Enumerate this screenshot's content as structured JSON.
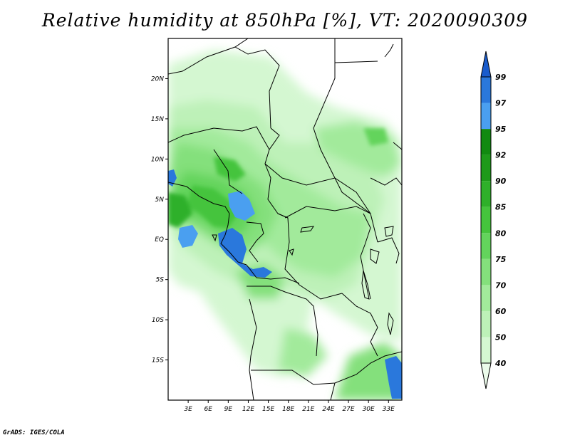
{
  "title": "Relative humidity at 850hPa [%], VT: 2020090309",
  "credit": "GrADS: IGES/COLA",
  "map": {
    "lon_range": [
      0,
      35
    ],
    "lat_range": [
      -20,
      25
    ],
    "lat_ticks": [
      {
        "value": 20,
        "label": "20N"
      },
      {
        "value": 15,
        "label": "15N"
      },
      {
        "value": 10,
        "label": "10N"
      },
      {
        "value": 5,
        "label": "5N"
      },
      {
        "value": 0,
        "label": "EQ"
      },
      {
        "value": -5,
        "label": "5S"
      },
      {
        "value": -10,
        "label": "10S"
      },
      {
        "value": -15,
        "label": "15S"
      }
    ],
    "lon_ticks": [
      {
        "value": 3,
        "label": "3E"
      },
      {
        "value": 6,
        "label": "6E"
      },
      {
        "value": 9,
        "label": "9E"
      },
      {
        "value": 12,
        "label": "12E"
      },
      {
        "value": 15,
        "label": "15E"
      },
      {
        "value": 18,
        "label": "18E"
      },
      {
        "value": 21,
        "label": "21E"
      },
      {
        "value": 24,
        "label": "24E"
      },
      {
        "value": 27,
        "label": "27E"
      },
      {
        "value": 30,
        "label": "30E"
      },
      {
        "value": 33,
        "label": "33E"
      }
    ]
  },
  "colorbar": {
    "levels": [
      "40",
      "50",
      "60",
      "70",
      "75",
      "80",
      "85",
      "90",
      "92",
      "95",
      "97",
      "99"
    ],
    "colors": [
      "#ebfbea",
      "#d4f7d1",
      "#bdf1b8",
      "#a2ea9b",
      "#84e07c",
      "#63d45c",
      "#45c43c",
      "#2fb02a",
      "#1e9a1a",
      "#118a10",
      "#4a9ff0",
      "#2a78dc",
      "#1a5ccc"
    ]
  }
}
